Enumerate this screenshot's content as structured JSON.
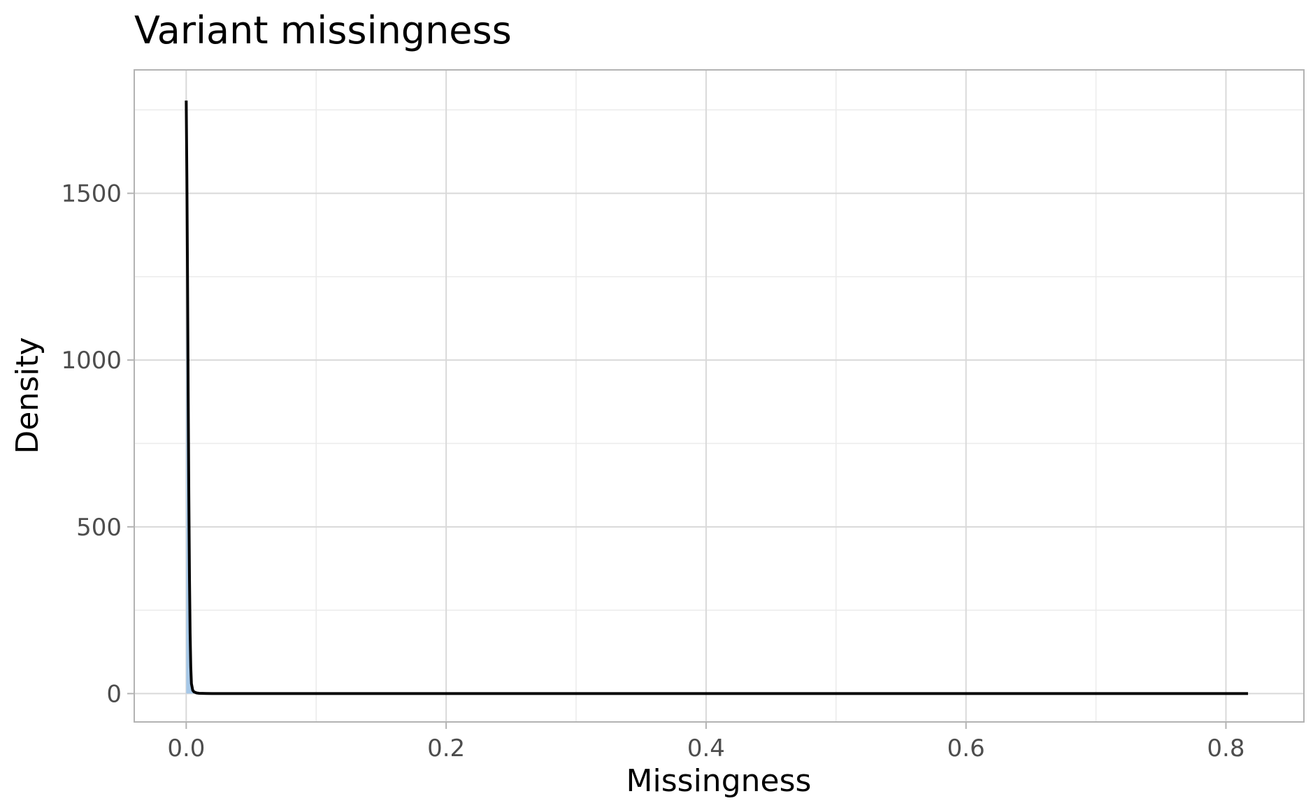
{
  "chart_data": {
    "type": "area",
    "title": "Variant missingness",
    "xlabel": "Missingness",
    "ylabel": "Density",
    "xlim": [
      -0.04,
      0.86
    ],
    "ylim": [
      -85,
      1870
    ],
    "x_ticks": [
      0.0,
      0.2,
      0.4,
      0.6,
      0.8
    ],
    "x_tick_labels": [
      "0.0",
      "0.2",
      "0.4",
      "0.6",
      "0.8"
    ],
    "x_minor_ticks": [
      0.1,
      0.3,
      0.5,
      0.7
    ],
    "y_ticks": [
      0,
      500,
      1000,
      1500
    ],
    "y_tick_labels": [
      "0",
      "500",
      "1000",
      "1500"
    ],
    "y_minor_ticks": [
      250,
      750,
      1250,
      1750
    ],
    "grid": true,
    "legend": "none",
    "series": [
      {
        "x": [
          0.0,
          0.0005,
          0.001,
          0.0015,
          0.002,
          0.0025,
          0.003,
          0.0035,
          0.004,
          0.005,
          0.006,
          0.008,
          0.01,
          0.015,
          0.02,
          0.05,
          0.1,
          0.2,
          0.3,
          0.4,
          0.5,
          0.6,
          0.7,
          0.8,
          0.817
        ],
        "y": [
          1778,
          1550,
          1250,
          900,
          600,
          350,
          180,
          80,
          30,
          10,
          5,
          2,
          1,
          0.3,
          0,
          0,
          0,
          0,
          0,
          0,
          0,
          0,
          0,
          0,
          0
        ]
      }
    ],
    "colors": {
      "line": "#000000",
      "fill": "#a6c8e8",
      "panel_border": "#b3b3b3",
      "grid_major": "#d9d9d9",
      "grid_minor": "#ebebeb",
      "tick_label": "#4d4d4d"
    }
  }
}
